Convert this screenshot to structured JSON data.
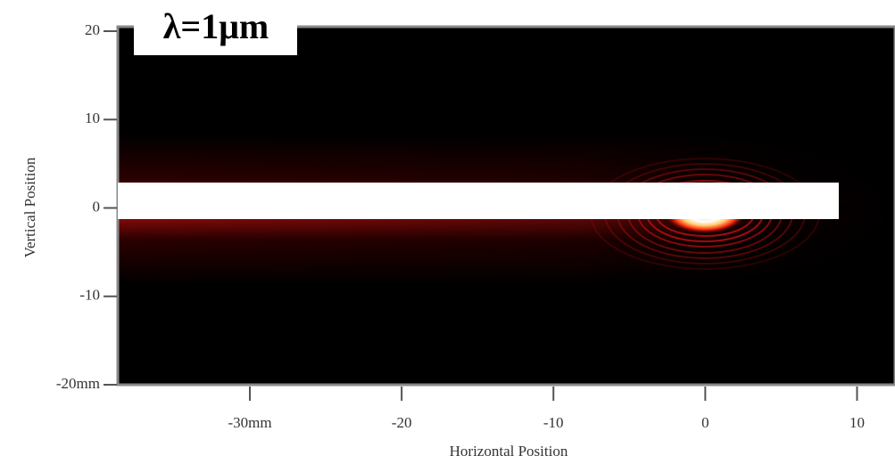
{
  "chart_data": {
    "type": "heatmap",
    "annotation": "λ=1μm",
    "x_label": "Horizontal Position",
    "y_label": "Vertical Position",
    "xlim": [
      -38.7,
      12.5
    ],
    "ylim": [
      -20,
      20
    ],
    "xticks": [
      {
        "value": -30,
        "label": "-30mm"
      },
      -20,
      -10,
      0,
      10
    ],
    "yticks": [
      20,
      10,
      0,
      -10,
      {
        "value": -20,
        "label": "-20mm"
      }
    ]
  }
}
